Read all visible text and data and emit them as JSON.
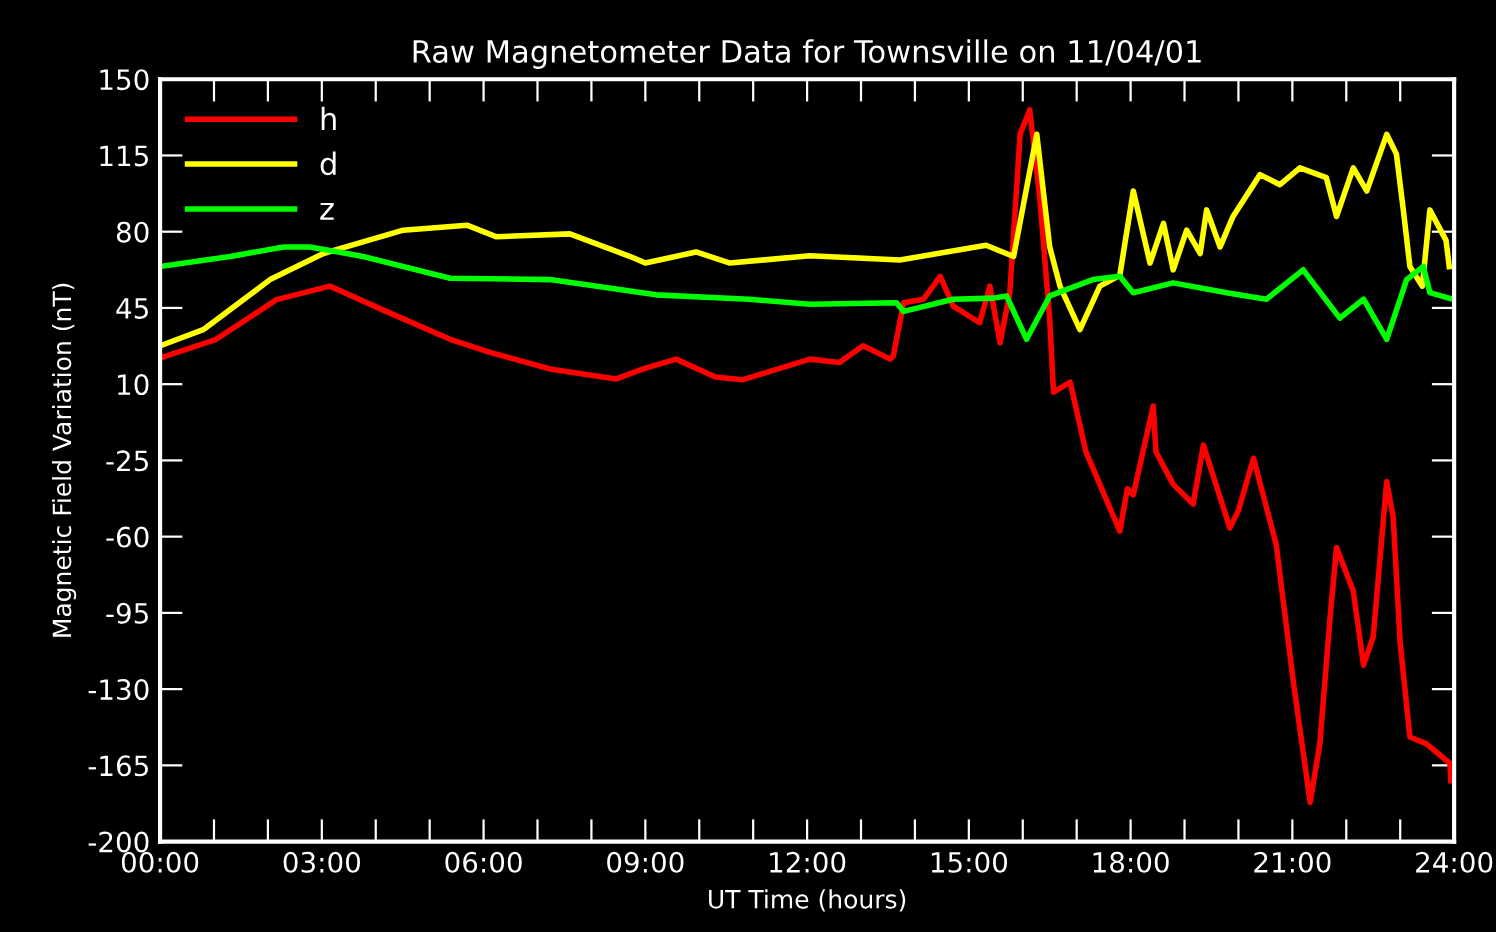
{
  "chart_data": {
    "type": "line",
    "title": "Raw Magnetometer Data for Townsville on 11/04/01",
    "xlabel": "UT Time (hours)",
    "ylabel": "Magnetic Field Variation (nT)",
    "xlim": [
      0,
      24
    ],
    "ylim": [
      -200,
      150
    ],
    "xticks": [
      {
        "value": 0,
        "label": "00:00"
      },
      {
        "value": 1,
        "label": null
      },
      {
        "value": 2,
        "label": null
      },
      {
        "value": 3,
        "label": "03:00"
      },
      {
        "value": 4,
        "label": null
      },
      {
        "value": 5,
        "label": null
      },
      {
        "value": 6,
        "label": "06:00"
      },
      {
        "value": 7,
        "label": null
      },
      {
        "value": 8,
        "label": null
      },
      {
        "value": 9,
        "label": "09:00"
      },
      {
        "value": 10,
        "label": null
      },
      {
        "value": 11,
        "label": null
      },
      {
        "value": 12,
        "label": "12:00"
      },
      {
        "value": 13,
        "label": null
      },
      {
        "value": 14,
        "label": null
      },
      {
        "value": 15,
        "label": "15:00"
      },
      {
        "value": 16,
        "label": null
      },
      {
        "value": 17,
        "label": null
      },
      {
        "value": 18,
        "label": "18:00"
      },
      {
        "value": 19,
        "label": null
      },
      {
        "value": 20,
        "label": null
      },
      {
        "value": 21,
        "label": "21:00"
      },
      {
        "value": 22,
        "label": null
      },
      {
        "value": 23,
        "label": null
      },
      {
        "value": 24,
        "label": "24:00"
      }
    ],
    "yticks": [
      -200,
      -165,
      -130,
      -95,
      -60,
      -25,
      10,
      45,
      80,
      115,
      150
    ],
    "grid": false,
    "legend": "top left",
    "marker": "none",
    "line_style": "solid",
    "series": [
      {
        "name": "h",
        "color": "#ff0000",
        "x": [
          0,
          1.04,
          2.16,
          3.15,
          4.14,
          5.38,
          6.12,
          7.23,
          8.46,
          8.96,
          9.57,
          10.3,
          10.8,
          12.05,
          12.6,
          13.04,
          13.54,
          13.6,
          13.79,
          14.16,
          14.47,
          14.71,
          15.2,
          15.39,
          15.58,
          15.76,
          15.95,
          16.13,
          16.32,
          16.5,
          16.57,
          16.88,
          17.17,
          17.8,
          17.94,
          18.05,
          18.42,
          18.47,
          18.79,
          19.16,
          19.35,
          19.84,
          20.0,
          20.28,
          20.7,
          21.02,
          21.33,
          21.51,
          21.7,
          21.82,
          22.13,
          22.32,
          22.5,
          22.75,
          22.87,
          23.0,
          23.18,
          23.48,
          23.92,
          23.94
        ],
        "values": [
          22,
          30.6,
          48.8,
          55,
          44,
          30.6,
          24.6,
          17,
          12.4,
          17,
          21.5,
          13.3,
          12,
          21.5,
          20,
          27.6,
          21.5,
          23,
          47.4,
          49,
          59.5,
          45.8,
          38.2,
          55,
          29,
          52,
          124.7,
          136,
          94.4,
          39.7,
          6.3,
          10.9,
          -21,
          -57.5,
          -38,
          -40.8,
          0,
          -21,
          -36,
          -45,
          -18,
          -56,
          -48,
          -24,
          -63.6,
          -127,
          -182,
          -155,
          -97,
          -65,
          -85,
          -119,
          -106,
          -34.7,
          -51,
          -109,
          -152,
          -155,
          -164,
          -172
        ]
      },
      {
        "name": "d",
        "color": "#ffff00",
        "x": [
          0,
          0.8,
          2.04,
          3.03,
          4.51,
          5.69,
          6.23,
          7.6,
          8.72,
          9.0,
          9.94,
          10.57,
          12.05,
          13.72,
          15.32,
          15.83,
          16.26,
          16.5,
          16.69,
          17.06,
          17.43,
          17.8,
          18.05,
          18.36,
          18.61,
          18.79,
          19.04,
          19.29,
          19.41,
          19.66,
          19.9,
          20.4,
          20.77,
          21.14,
          21.63,
          21.82,
          22.13,
          22.38,
          22.75,
          22.93,
          23.06,
          23.18,
          23.41,
          23.55,
          23.85,
          23.91
        ],
        "values": [
          27.6,
          35,
          58,
          70,
          80.7,
          83,
          77.7,
          79,
          68.6,
          65.6,
          70.7,
          65.6,
          69,
          67,
          73.8,
          68.6,
          124.7,
          73,
          55,
          35,
          55,
          60,
          98.7,
          65.6,
          83.8,
          62.5,
          80.7,
          70,
          90,
          73,
          87,
          106.2,
          101.6,
          109.3,
          104.8,
          87,
          109.3,
          98.7,
          124.7,
          115.6,
          89.6,
          64,
          55,
          90,
          76,
          64
        ]
      },
      {
        "name": "z",
        "color": "#00ff00",
        "x": [
          0,
          1.3,
          2.29,
          2.78,
          3.77,
          5.38,
          7.23,
          9.2,
          10.92,
          12.05,
          13.66,
          13.79,
          14.71,
          15.45,
          15.7,
          16.07,
          16.5,
          17.3,
          17.8,
          18.05,
          18.79,
          19.78,
          20.52,
          21.2,
          21.88,
          22.32,
          22.75,
          23.12,
          23.43,
          23.55,
          23.98
        ],
        "values": [
          64,
          68.6,
          73,
          73,
          68.6,
          58.6,
          58,
          51,
          49,
          46.7,
          47.4,
          43.4,
          49,
          49.5,
          50.5,
          30.6,
          50.5,
          58,
          59.5,
          52,
          56.5,
          52,
          49,
          62.5,
          40.3,
          49,
          30.6,
          58,
          64,
          52,
          49
        ]
      }
    ]
  }
}
